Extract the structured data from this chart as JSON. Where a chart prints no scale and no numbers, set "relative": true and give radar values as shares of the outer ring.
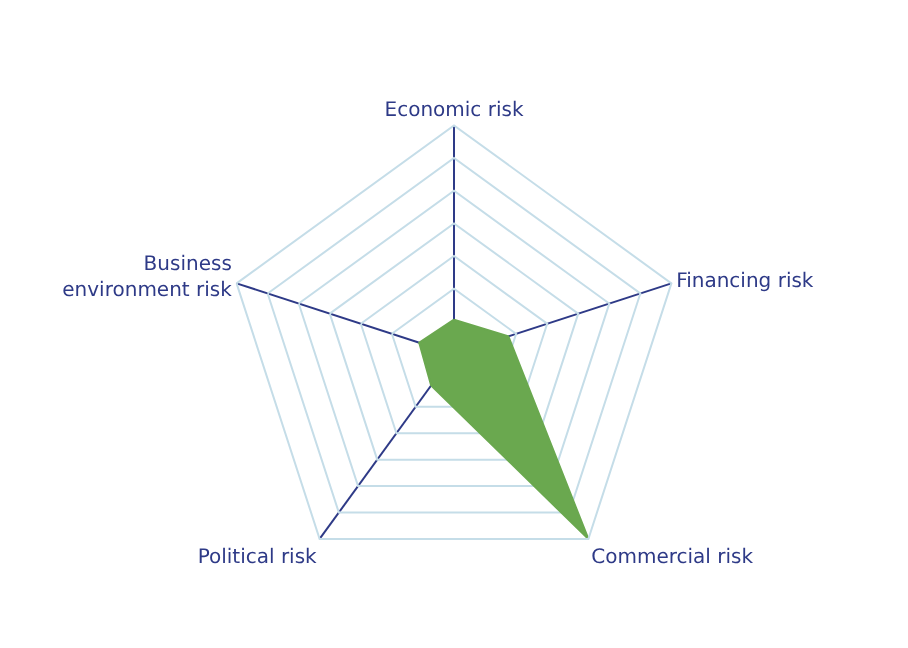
{
  "chart_data": {
    "type": "radar",
    "relative": true,
    "grid": true,
    "marker": "none",
    "categories": [
      "Economic risk",
      "Financing risk",
      "Commercial risk",
      "Political risk",
      "Business environment risk"
    ],
    "series": [
      {
        "color": "#6aa84f",
        "values": [
          0.15,
          0.25,
          1,
          0.17,
          0.16
        ]
      }
    ]
  }
}
